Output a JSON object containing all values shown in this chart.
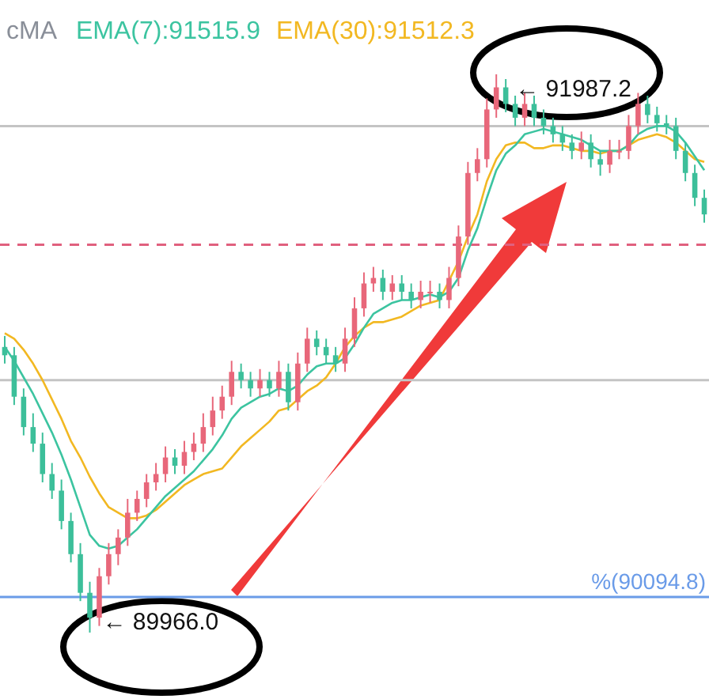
{
  "chart_data": {
    "type": "candlestick",
    "categories": [
      null,
      null,
      null,
      null,
      null,
      null,
      null,
      null,
      null,
      null,
      null,
      null,
      null,
      null,
      null,
      null,
      null,
      null,
      null,
      null,
      null,
      null,
      null,
      null,
      null,
      null,
      null,
      null,
      null,
      null,
      null,
      null,
      null,
      null,
      null,
      null,
      null,
      null,
      null,
      null,
      null,
      null,
      null,
      null,
      null,
      null,
      null,
      null,
      null,
      null,
      null,
      null,
      null,
      null,
      null,
      null,
      null,
      null,
      null,
      null,
      null,
      null,
      null,
      null,
      null,
      null,
      null,
      null,
      null,
      null,
      null,
      null,
      null,
      null,
      null
    ],
    "ohlc": [
      [
        91000,
        91040,
        90940,
        90970
      ],
      [
        90970,
        91000,
        90790,
        90820
      ],
      [
        90820,
        90850,
        90680,
        90710
      ],
      [
        90710,
        90760,
        90620,
        90650
      ],
      [
        90650,
        90690,
        90510,
        90540
      ],
      [
        90540,
        90580,
        90450,
        90480
      ],
      [
        90480,
        90520,
        90340,
        90370
      ],
      [
        90370,
        90400,
        90220,
        90250
      ],
      [
        90250,
        90290,
        90080,
        90110
      ],
      [
        90110,
        90150,
        89966.0,
        90020
      ],
      [
        90020,
        90200,
        89990,
        90170
      ],
      [
        90170,
        90290,
        90140,
        90250
      ],
      [
        90250,
        90340,
        90210,
        90310
      ],
      [
        90310,
        90450,
        90280,
        90400
      ],
      [
        90400,
        90480,
        90370,
        90450
      ],
      [
        90450,
        90540,
        90420,
        90510
      ],
      [
        90510,
        90580,
        90480,
        90540
      ],
      [
        90540,
        90640,
        90510,
        90600
      ],
      [
        90600,
        90630,
        90540,
        90570
      ],
      [
        90570,
        90660,
        90540,
        90620
      ],
      [
        90620,
        90690,
        90590,
        90650
      ],
      [
        90650,
        90760,
        90620,
        90710
      ],
      [
        90710,
        90820,
        90680,
        90770
      ],
      [
        90770,
        90860,
        90740,
        90820
      ],
      [
        90820,
        90950,
        90790,
        90910
      ],
      [
        90910,
        90940,
        90850,
        90880
      ],
      [
        90880,
        90910,
        90820,
        90850
      ],
      [
        90850,
        90920,
        90820,
        90880
      ],
      [
        90880,
        90910,
        90820,
        90850
      ],
      [
        90850,
        90950,
        90820,
        90910
      ],
      [
        90910,
        90940,
        90770,
        90800
      ],
      [
        90800,
        90980,
        90770,
        90940
      ],
      [
        90940,
        91070,
        90910,
        91030
      ],
      [
        91030,
        91060,
        90970,
        91000
      ],
      [
        91000,
        91030,
        90940,
        90970
      ],
      [
        90970,
        91000,
        90910,
        90940
      ],
      [
        90940,
        91070,
        90910,
        91030
      ],
      [
        91030,
        91180,
        91000,
        91140
      ],
      [
        91140,
        91270,
        91110,
        91230
      ],
      [
        91230,
        91290,
        91200,
        91250
      ],
      [
        91250,
        91280,
        91170,
        91200
      ],
      [
        91200,
        91260,
        91170,
        91230
      ],
      [
        91230,
        91260,
        91170,
        91200
      ],
      [
        91200,
        91230,
        91140,
        91170
      ],
      [
        91170,
        91240,
        91140,
        91200
      ],
      [
        91200,
        91240,
        91160,
        91200
      ],
      [
        91200,
        91230,
        91140,
        91170
      ],
      [
        91170,
        91290,
        91140,
        91250
      ],
      [
        91250,
        91440,
        91220,
        91400
      ],
      [
        91400,
        91670,
        91370,
        91630
      ],
      [
        91630,
        91720,
        91600,
        91680
      ],
      [
        91680,
        91900,
        91650,
        91860
      ],
      [
        91860,
        91987.2,
        91830,
        91940
      ],
      [
        91940,
        91970,
        91850,
        91880
      ],
      [
        91880,
        91910,
        91800,
        91830
      ],
      [
        91830,
        91920,
        91800,
        91880
      ],
      [
        91880,
        91910,
        91800,
        91830
      ],
      [
        91830,
        91860,
        91770,
        91800
      ],
      [
        91800,
        91830,
        91740,
        91770
      ],
      [
        91770,
        91800,
        91710,
        91740
      ],
      [
        91740,
        91770,
        91680,
        91710
      ],
      [
        91710,
        91780,
        91680,
        91740
      ],
      [
        91740,
        91770,
        91650,
        91680
      ],
      [
        91680,
        91710,
        91620,
        91660
      ],
      [
        91660,
        91750,
        91630,
        91710
      ],
      [
        91710,
        91750,
        91680,
        91710
      ],
      [
        91710,
        91840,
        91680,
        91800
      ],
      [
        91800,
        91920,
        91770,
        91880
      ],
      [
        91880,
        91910,
        91810,
        91840
      ],
      [
        91840,
        91870,
        91780,
        91810
      ],
      [
        91810,
        91840,
        91770,
        91800
      ],
      [
        91800,
        91830,
        91680,
        91710
      ],
      [
        91710,
        91740,
        91600,
        91630
      ],
      [
        91630,
        91660,
        91510,
        91540
      ],
      [
        91540,
        91570,
        91450,
        91480
      ]
    ],
    "colors": [
      "#3cbf9a",
      "#3cbf9a",
      "#3cbf9a",
      "#3cbf9a",
      "#3cbf9a",
      "#3cbf9a",
      "#3cbf9a",
      "#3cbf9a",
      "#3cbf9a",
      "#3cbf9a",
      "#e8677a",
      "#e8677a",
      "#e8677a",
      "#e8677a",
      "#e8677a",
      "#e8677a",
      "#e8677a",
      "#e8677a",
      "#3cbf9a",
      "#e8677a",
      "#e8677a",
      "#e8677a",
      "#e8677a",
      "#e8677a",
      "#e8677a",
      "#3cbf9a",
      "#3cbf9a",
      "#e8677a",
      "#3cbf9a",
      "#e8677a",
      "#3cbf9a",
      "#e8677a",
      "#e8677a",
      "#3cbf9a",
      "#3cbf9a",
      "#3cbf9a",
      "#e8677a",
      "#e8677a",
      "#e8677a",
      "#e8677a",
      "#3cbf9a",
      "#e8677a",
      "#3cbf9a",
      "#3cbf9a",
      "#e8677a",
      "#e8677a",
      "#3cbf9a",
      "#e8677a",
      "#e8677a",
      "#e8677a",
      "#e8677a",
      "#e8677a",
      "#e8677a",
      "#3cbf9a",
      "#3cbf9a",
      "#e8677a",
      "#3cbf9a",
      "#3cbf9a",
      "#3cbf9a",
      "#3cbf9a",
      "#3cbf9a",
      "#e8677a",
      "#3cbf9a",
      "#3cbf9a",
      "#e8677a",
      "#e8677a",
      "#e8677a",
      "#e8677a",
      "#3cbf9a",
      "#3cbf9a",
      "#3cbf9a",
      "#3cbf9a",
      "#3cbf9a",
      "#3cbf9a",
      "#3cbf9a"
    ],
    "series": [
      {
        "type": "line",
        "name": "EMA(7):91515.9",
        "color": "#3cc4a0",
        "values": [
          91000,
          90950,
          90890,
          90830,
          90760,
          90690,
          90610,
          90520,
          90420,
          90320,
          90280,
          90270,
          90280,
          90310,
          90340,
          90380,
          90420,
          90460,
          90490,
          90520,
          90550,
          90590,
          90630,
          90680,
          90740,
          90780,
          90800,
          90820,
          90830,
          90850,
          90840,
          90860,
          90900,
          90930,
          90940,
          90940,
          90960,
          91010,
          91070,
          91120,
          91140,
          91160,
          91170,
          91170,
          91180,
          91190,
          91180,
          91200,
          91250,
          91350,
          91430,
          91540,
          91640,
          91700,
          91730,
          91770,
          91780,
          91790,
          91780,
          91770,
          91760,
          91750,
          91730,
          91710,
          91710,
          91710,
          91730,
          91770,
          91790,
          91800,
          91800,
          91780,
          91740,
          91690,
          91640
        ]
      },
      {
        "type": "line",
        "name": "EMA(30):91512.3",
        "color": "#f2b822",
        "values": [
          91050,
          91030,
          90990,
          90940,
          90880,
          90810,
          90740,
          90660,
          90600,
          90530,
          90470,
          90420,
          90400,
          90380,
          90380,
          90390,
          90410,
          90440,
          90470,
          90500,
          90520,
          90540,
          90550,
          90560,
          90600,
          90640,
          90670,
          90700,
          90730,
          90770,
          90780,
          90810,
          90840,
          90860,
          90890,
          90940,
          91000,
          91040,
          91070,
          91090,
          91090,
          91100,
          91110,
          91130,
          91150,
          91160,
          91170,
          91240,
          91310,
          91400,
          91480,
          91600,
          91680,
          91730,
          91740,
          91740,
          91720,
          91720,
          91730,
          91730,
          91720,
          91710,
          91710,
          91700,
          91710,
          91710,
          91730,
          91750,
          91760,
          91770,
          91760,
          91740,
          91710,
          91680,
          91670
        ]
      }
    ],
    "ref_lines": [
      {
        "axis": "y",
        "value": 91800,
        "color": "#c4c4c4",
        "line_style": "solid"
      },
      {
        "axis": "y",
        "value": 91370,
        "color": "#e0607e",
        "line_style": "dashed"
      },
      {
        "axis": "y",
        "value": 90880,
        "color": "#c4c4c4",
        "line_style": "solid"
      },
      {
        "axis": "y",
        "value": 90094.8,
        "color": "#6a9be8",
        "line_style": "solid",
        "label": "%(90094.8)"
      }
    ],
    "annotations": [
      "cMA",
      "← 91987.2",
      "← 89966.0"
    ],
    "legend": "top",
    "tick_labels": false
  }
}
